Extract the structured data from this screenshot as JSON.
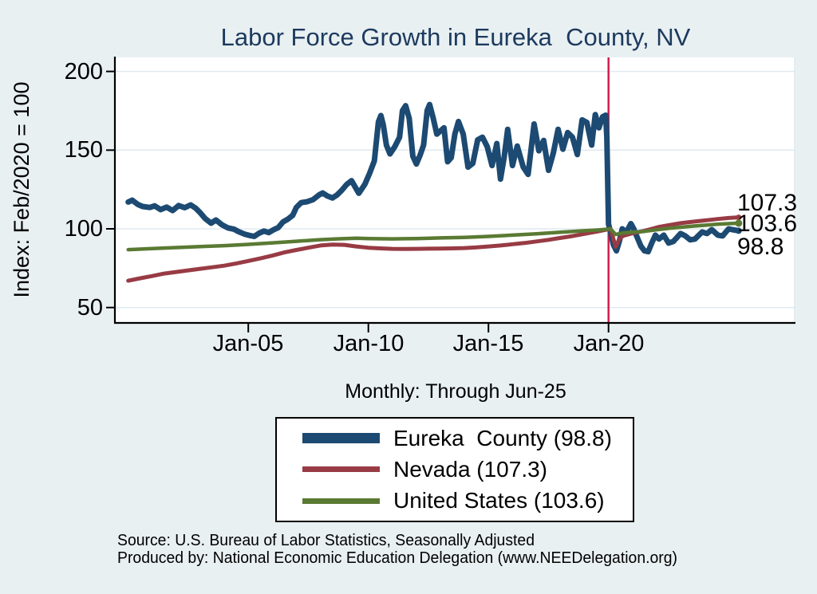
{
  "title": "Labor Force Growth in Eureka  County, NV",
  "subtitle": "Monthly: Through Jun-25",
  "axes": {
    "y_label": "Index: Feb/2020 = 100",
    "y_ticks": [
      "200",
      "150",
      "100",
      "50"
    ],
    "x_ticks": [
      "Jan-05",
      "Jan-10",
      "Jan-15",
      "Jan-20"
    ]
  },
  "annotations": [
    {
      "label": "107.3"
    },
    {
      "label": "103.6"
    },
    {
      "label": "98.8"
    }
  ],
  "legend": {
    "items": [
      {
        "label": "Eureka  County (98.8)"
      },
      {
        "label": "Nevada (107.3)"
      },
      {
        "label": "United States (103.6)"
      }
    ]
  },
  "source": {
    "line1": "Source: U.S. Bureau of Labor Statistics, Seasonally Adjusted",
    "line2": "Produced by: National Economic Education Delegation (www.NEEDelegation.org)"
  },
  "colors": {
    "background": "#e9f0f2",
    "plot_background": "#ffffff",
    "gridline": "#dfeaf0",
    "title": "#1c3a5e",
    "axis": "#000000",
    "event_line": "#d11f4d",
    "eureka": "#1c4a72",
    "nevada": "#983b44",
    "united_states": "#5a7a33"
  },
  "chart_data": {
    "type": "line",
    "title": "Labor Force Growth in Eureka  County, NV",
    "subtitle": "Monthly: Through Jun-25",
    "xlabel": "",
    "ylabel": "Index: Feb/2020 = 100",
    "ylim": [
      41,
      209
    ],
    "xlim_years": [
      1999.5,
      2027.8
    ],
    "y_ticks": [
      200,
      150,
      100,
      50
    ],
    "x_tick_years": [
      2005,
      2010,
      2015,
      2020
    ],
    "grid": true,
    "legend_position": "bottom",
    "event_line": {
      "x_year": 2020.0,
      "color": "#d11f4d"
    },
    "series": [
      {
        "name": "Eureka County",
        "final_value": 98.8,
        "color": "#1c4a72",
        "width": 7,
        "end_dot_r": 4,
        "points": [
          [
            2000.0,
            117
          ],
          [
            2000.17,
            118.2
          ],
          [
            2000.4,
            115.5
          ],
          [
            2000.6,
            114.2
          ],
          [
            2000.9,
            113.6
          ],
          [
            2001.1,
            114.6
          ],
          [
            2001.35,
            112.2
          ],
          [
            2001.6,
            113.8
          ],
          [
            2001.85,
            111.6
          ],
          [
            2002.1,
            114.8
          ],
          [
            2002.35,
            113.4
          ],
          [
            2002.6,
            115.2
          ],
          [
            2002.8,
            113.2
          ],
          [
            2003.0,
            110.2
          ],
          [
            2003.2,
            106.6
          ],
          [
            2003.45,
            103.6
          ],
          [
            2003.65,
            105.6
          ],
          [
            2003.9,
            102.6
          ],
          [
            2004.15,
            100.6
          ],
          [
            2004.4,
            99.8
          ],
          [
            2004.6,
            98.2
          ],
          [
            2004.85,
            96.6
          ],
          [
            2005.05,
            95.8
          ],
          [
            2005.25,
            95.2
          ],
          [
            2005.45,
            97.2
          ],
          [
            2005.65,
            98.6
          ],
          [
            2005.85,
            97.6
          ],
          [
            2006.05,
            99.4
          ],
          [
            2006.25,
            100.8
          ],
          [
            2006.45,
            104.4
          ],
          [
            2006.65,
            106.2
          ],
          [
            2006.85,
            108.6
          ],
          [
            2007.0,
            113.6
          ],
          [
            2007.2,
            116.6
          ],
          [
            2007.45,
            117.2
          ],
          [
            2007.7,
            118.6
          ],
          [
            2007.95,
            121.6
          ],
          [
            2008.1,
            122.8
          ],
          [
            2008.3,
            120.8
          ],
          [
            2008.5,
            119.6
          ],
          [
            2008.7,
            121.6
          ],
          [
            2008.9,
            124.6
          ],
          [
            2009.1,
            128.2
          ],
          [
            2009.3,
            130.6
          ],
          [
            2009.6,
            122.6
          ],
          [
            2009.85,
            128.2
          ],
          [
            2010.05,
            135.2
          ],
          [
            2010.25,
            143.2
          ],
          [
            2010.42,
            168
          ],
          [
            2010.52,
            172
          ],
          [
            2010.62,
            166
          ],
          [
            2010.75,
            153.2
          ],
          [
            2010.9,
            147.6
          ],
          [
            2011.1,
            152.2
          ],
          [
            2011.3,
            158.2
          ],
          [
            2011.42,
            175
          ],
          [
            2011.55,
            178.2
          ],
          [
            2011.7,
            170.2
          ],
          [
            2011.85,
            146.2
          ],
          [
            2012.0,
            141.2
          ],
          [
            2012.15,
            146.6
          ],
          [
            2012.3,
            153.2
          ],
          [
            2012.45,
            175.2
          ],
          [
            2012.55,
            179
          ],
          [
            2012.7,
            170.2
          ],
          [
            2012.85,
            160.2
          ],
          [
            2013.0,
            162.2
          ],
          [
            2013.15,
            164.2
          ],
          [
            2013.3,
            142.6
          ],
          [
            2013.45,
            145.2
          ],
          [
            2013.6,
            160.2
          ],
          [
            2013.75,
            168.2
          ],
          [
            2013.95,
            160.2
          ],
          [
            2014.15,
            139.2
          ],
          [
            2014.35,
            141.6
          ],
          [
            2014.55,
            156.6
          ],
          [
            2014.75,
            158.2
          ],
          [
            2014.95,
            152.2
          ],
          [
            2015.15,
            140.2
          ],
          [
            2015.35,
            154.2
          ],
          [
            2015.5,
            131.6
          ],
          [
            2015.65,
            145.2
          ],
          [
            2015.8,
            163.2
          ],
          [
            2016.0,
            140.2
          ],
          [
            2016.2,
            152.6
          ],
          [
            2016.45,
            139.2
          ],
          [
            2016.65,
            134.6
          ],
          [
            2016.9,
            166.6
          ],
          [
            2017.1,
            149.6
          ],
          [
            2017.3,
            156.2
          ],
          [
            2017.5,
            137.2
          ],
          [
            2017.7,
            148.2
          ],
          [
            2017.9,
            163.2
          ],
          [
            2018.1,
            150.6
          ],
          [
            2018.3,
            161.2
          ],
          [
            2018.5,
            158.2
          ],
          [
            2018.7,
            147.2
          ],
          [
            2018.9,
            169.2
          ],
          [
            2019.1,
            167.6
          ],
          [
            2019.3,
            153.2
          ],
          [
            2019.45,
            172.6
          ],
          [
            2019.6,
            164.2
          ],
          [
            2019.75,
            171.2
          ],
          [
            2019.88,
            172.2
          ],
          [
            2019.93,
            158
          ],
          [
            2020.0,
            103
          ],
          [
            2020.1,
            97
          ],
          [
            2020.2,
            90
          ],
          [
            2020.33,
            86
          ],
          [
            2020.45,
            92
          ],
          [
            2020.57,
            100
          ],
          [
            2020.7,
            98.5
          ],
          [
            2020.8,
            99.5
          ],
          [
            2020.93,
            103.3
          ],
          [
            2021.05,
            100
          ],
          [
            2021.17,
            95.5
          ],
          [
            2021.35,
            89
          ],
          [
            2021.5,
            86
          ],
          [
            2021.65,
            85.5
          ],
          [
            2021.8,
            91
          ],
          [
            2021.95,
            96
          ],
          [
            2022.1,
            93.5
          ],
          [
            2022.3,
            96
          ],
          [
            2022.5,
            91
          ],
          [
            2022.7,
            92
          ],
          [
            2023.0,
            97
          ],
          [
            2023.2,
            95.5
          ],
          [
            2023.4,
            93
          ],
          [
            2023.6,
            93.5
          ],
          [
            2023.9,
            98
          ],
          [
            2024.1,
            97
          ],
          [
            2024.3,
            99.5
          ],
          [
            2024.55,
            96
          ],
          [
            2024.75,
            95.5
          ],
          [
            2025.0,
            100
          ],
          [
            2025.15,
            99.5
          ],
          [
            2025.42,
            98.8
          ]
        ]
      },
      {
        "name": "Nevada",
        "final_value": 107.3,
        "color": "#983b44",
        "width": 5,
        "end_dot_r": 3.5,
        "points": [
          [
            2000.0,
            67
          ],
          [
            2000.5,
            68.6
          ],
          [
            2001.0,
            70
          ],
          [
            2001.5,
            71.6
          ],
          [
            2002.0,
            72.6
          ],
          [
            2002.5,
            73.6
          ],
          [
            2003.0,
            74.6
          ],
          [
            2003.5,
            75.6
          ],
          [
            2004.0,
            76.6
          ],
          [
            2004.5,
            78
          ],
          [
            2005.0,
            79.6
          ],
          [
            2005.5,
            81.2
          ],
          [
            2006.0,
            83
          ],
          [
            2006.5,
            85
          ],
          [
            2007.0,
            86.6
          ],
          [
            2007.5,
            88
          ],
          [
            2008.0,
            89.4
          ],
          [
            2008.5,
            90
          ],
          [
            2009.0,
            89.8
          ],
          [
            2009.5,
            88.8
          ],
          [
            2010.0,
            88
          ],
          [
            2010.5,
            87.6
          ],
          [
            2011.0,
            87.3
          ],
          [
            2011.5,
            87.2
          ],
          [
            2012.0,
            87.3
          ],
          [
            2012.5,
            87.4
          ],
          [
            2013.0,
            87.5
          ],
          [
            2013.5,
            87.6
          ],
          [
            2014.0,
            87.8
          ],
          [
            2014.5,
            88.2
          ],
          [
            2015.0,
            88.8
          ],
          [
            2015.5,
            89.4
          ],
          [
            2016.0,
            90.2
          ],
          [
            2016.5,
            91
          ],
          [
            2017.0,
            92
          ],
          [
            2017.5,
            93
          ],
          [
            2018.0,
            94.2
          ],
          [
            2018.5,
            95.4
          ],
          [
            2019.0,
            96.8
          ],
          [
            2019.5,
            98.2
          ],
          [
            2020.08,
            100
          ],
          [
            2020.3,
            88.5
          ],
          [
            2020.45,
            93.5
          ],
          [
            2020.6,
            95.5
          ],
          [
            2020.9,
            96.8
          ],
          [
            2021.2,
            97.8
          ],
          [
            2021.5,
            98.8
          ],
          [
            2021.8,
            100
          ],
          [
            2022.1,
            101.2
          ],
          [
            2022.5,
            102.3
          ],
          [
            2023.0,
            103.6
          ],
          [
            2023.5,
            104.5
          ],
          [
            2024.0,
            105.3
          ],
          [
            2024.5,
            106.2
          ],
          [
            2025.0,
            106.9
          ],
          [
            2025.42,
            107.3
          ]
        ]
      },
      {
        "name": "United States",
        "final_value": 103.6,
        "color": "#5a7a33",
        "width": 4.5,
        "end_dot_r": 4.5,
        "points": [
          [
            2000.0,
            86.8
          ],
          [
            2001.0,
            87.5
          ],
          [
            2002.0,
            88.1
          ],
          [
            2003.0,
            88.7
          ],
          [
            2004.0,
            89.3
          ],
          [
            2005.0,
            90.1
          ],
          [
            2006.0,
            91.1
          ],
          [
            2007.0,
            92.1
          ],
          [
            2008.0,
            93.1
          ],
          [
            2008.7,
            93.6
          ],
          [
            2009.5,
            94
          ],
          [
            2010.0,
            93.8
          ],
          [
            2011.0,
            93.6
          ],
          [
            2012.0,
            93.8
          ],
          [
            2013.0,
            94.2
          ],
          [
            2014.0,
            94.6
          ],
          [
            2015.0,
            95.2
          ],
          [
            2016.0,
            96
          ],
          [
            2017.0,
            96.8
          ],
          [
            2018.0,
            97.8
          ],
          [
            2019.0,
            98.8
          ],
          [
            2019.6,
            99.3
          ],
          [
            2020.08,
            100
          ],
          [
            2020.3,
            96.4
          ],
          [
            2020.6,
            97.4
          ],
          [
            2021.0,
            97.9
          ],
          [
            2021.5,
            98.4
          ],
          [
            2022.0,
            99.4
          ],
          [
            2022.5,
            100.3
          ],
          [
            2023.0,
            101
          ],
          [
            2023.5,
            101.7
          ],
          [
            2024.0,
            102.3
          ],
          [
            2024.5,
            102.9
          ],
          [
            2025.0,
            103.3
          ],
          [
            2025.42,
            103.6
          ]
        ]
      }
    ]
  }
}
